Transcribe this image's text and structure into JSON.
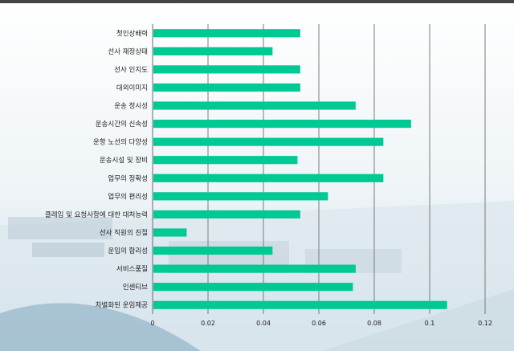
{
  "chart_data": {
    "type": "bar",
    "orientation": "horizontal",
    "categories": [
      "첫인상배력",
      "선사 재정상태",
      "선사 인지도",
      "대외이미지",
      "운송 정시성",
      "운송시간의 신속성",
      "운항 노선의 다양성",
      "운송시설 및 장비",
      "업무의 정확성",
      "업무의 편리성",
      "클레임 및 요청사항에 대한 대처능력",
      "선사 직원의 친절",
      "운임의 합리성",
      "서비스품질",
      "인센티브",
      "차별화된 운임제공"
    ],
    "values": [
      0.053,
      0.043,
      0.053,
      0.053,
      0.073,
      0.093,
      0.083,
      0.052,
      0.083,
      0.063,
      0.053,
      0.012,
      0.043,
      0.073,
      0.072,
      0.106
    ],
    "xlim": [
      0,
      0.12
    ],
    "xticks": [
      "0",
      "0.02",
      "0.04",
      "0.06",
      "0.08",
      "0.1",
      "0.12"
    ],
    "grid": "vertical",
    "bar_color": "#00c994",
    "title": "",
    "xlabel": "",
    "ylabel": ""
  }
}
